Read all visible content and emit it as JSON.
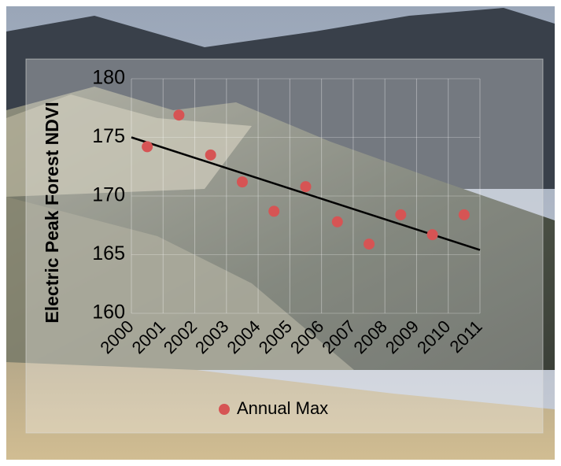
{
  "chart_data": {
    "type": "scatter",
    "y_label": "Electric Peak Forest  NDVI",
    "x": [
      2000.5,
      2001.5,
      2002.5,
      2003.5,
      2004.5,
      2005.5,
      2006.5,
      2007.5,
      2008.5,
      2009.5,
      2010.5
    ],
    "series": [
      {
        "name": "Annual Max",
        "color": "#d65454",
        "values": [
          174.2,
          176.9,
          173.5,
          171.2,
          168.7,
          170.8,
          167.8,
          165.9,
          168.4,
          166.7,
          168.4
        ]
      }
    ],
    "trendline": {
      "x": [
        2000,
        2011
      ],
      "values": [
        175.0,
        165.4
      ],
      "color": "#000000"
    },
    "xlim": [
      2000,
      2011
    ],
    "xticks": [
      2000,
      2001,
      2002,
      2003,
      2004,
      2005,
      2006,
      2007,
      2008,
      2009,
      2010,
      2011
    ],
    "ylim": [
      160,
      180
    ],
    "yticks": [
      160,
      165,
      170,
      175,
      180
    ],
    "grid": true,
    "legend": "bottom"
  }
}
